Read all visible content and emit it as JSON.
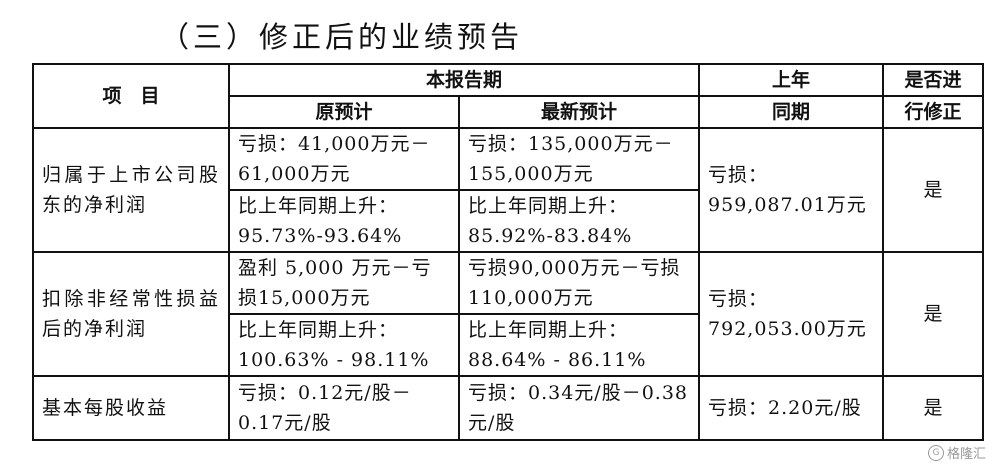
{
  "title": "（三）修正后的业绩预告",
  "header": {
    "item": "项　目",
    "current_period": "本报告期",
    "original_forecast": "原预计",
    "latest_forecast": "最新预计",
    "prior_year_line1": "上年",
    "prior_year_line2": "同期",
    "revised_line1": "是否进",
    "revised_line2": "行修正"
  },
  "rows": [
    {
      "item": "归属于上市公司股东的净利润",
      "original_amount": "亏损：41,000万元－61,000万元",
      "latest_amount": "亏损：135,000万元－155,000万元",
      "original_change": "比上年同期上升：95.73%-93.64%",
      "latest_change": "比上年同期上升：85.92%-83.84%",
      "prior_year": "亏损：959,087.01万元",
      "revised": "是"
    },
    {
      "item": "扣除非经常性损益后的净利润",
      "original_amount": "盈利 5,000 万元－亏损15,000万元",
      "latest_amount": "亏损90,000万元－亏损110,000万元",
      "original_change": "比上年同期上升：100.63% - 98.11%",
      "latest_change": "比上年同期上升：88.64% - 86.11%",
      "prior_year": "亏损：792,053.00万元",
      "revised": "是"
    },
    {
      "item": "基本每股收益",
      "original_amount": "亏损：0.12元/股－0.17元/股",
      "latest_amount": "亏损：0.34元/股－0.38元/股",
      "prior_year": "亏损：2.20元/股",
      "revised": "是"
    }
  ],
  "watermark": "格隆汇"
}
